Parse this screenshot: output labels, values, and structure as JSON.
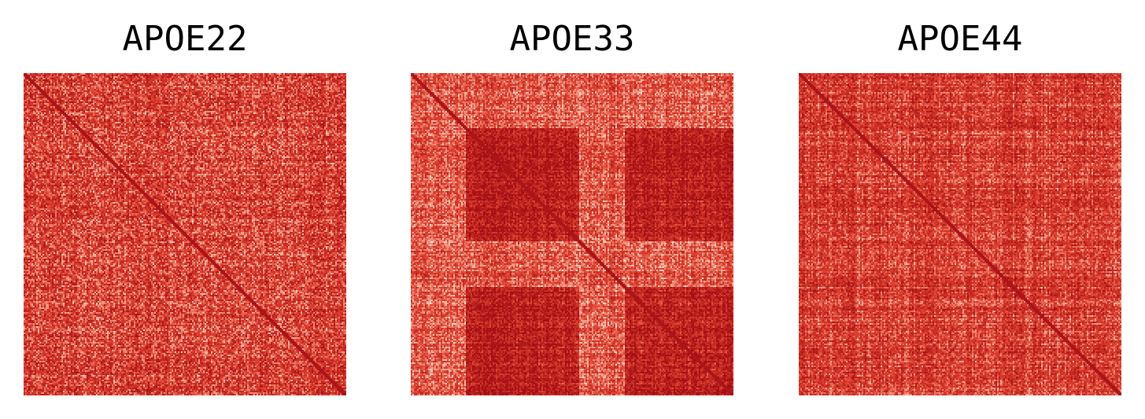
{
  "chart_data": [
    {
      "type": "heatmap",
      "title": "APOE22",
      "colormap": "Reds",
      "axes_visible": false,
      "pattern": "diffuse correlation matrix with weak block structure and bright diagonal",
      "colors": {
        "low": "#fde0cf",
        "mid": "#e0422f",
        "high": "#a50f15"
      }
    },
    {
      "type": "heatmap",
      "title": "APOE33",
      "colormap": "Reds",
      "axes_visible": false,
      "pattern": "correlation matrix with two strong block clusters and diagonal",
      "colors": {
        "low": "#fde0cf",
        "mid": "#e0422f",
        "high": "#a50f15"
      }
    },
    {
      "type": "heatmap",
      "title": "APOE44",
      "colormap": "Reds",
      "axes_visible": false,
      "pattern": "correlation matrix with fine striped structure and diagonal",
      "colors": {
        "low": "#fde0cf",
        "mid": "#e0422f",
        "high": "#a50f15"
      }
    }
  ]
}
